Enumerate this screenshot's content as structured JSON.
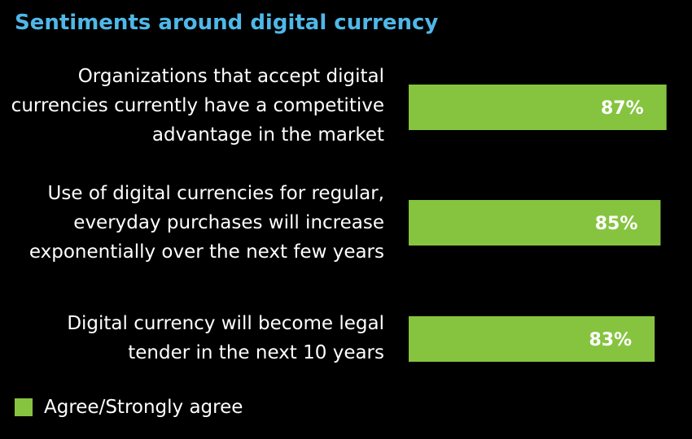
{
  "chart_data": {
    "type": "bar",
    "orientation": "horizontal",
    "title": "Sentiments around digital currency",
    "categories": [
      "Organizations that accept digital currencies currently have a competitive advantage in the market",
      "Use of digital currencies for regular, everyday purchases will increase exponentially over the next few years",
      "Digital currency will become legal tender in the next 10 years"
    ],
    "category_lines": [
      [
        "Organizations that accept digital",
        "currencies currently have a competitive",
        "advantage in the market"
      ],
      [
        "Use of digital currencies for regular,",
        "everyday purchases will increase",
        "exponentially over the next few years"
      ],
      [
        "Digital currency will become legal",
        "tender in the next 10 years"
      ]
    ],
    "series": [
      {
        "name": "Agree/Strongly agree",
        "values": [
          87,
          85,
          83
        ],
        "labels": [
          "87%",
          "85%",
          "83%"
        ]
      }
    ],
    "unit": "%",
    "legend_position": "bottom-left",
    "grid": false
  },
  "colors": {
    "background": "#000000",
    "title": "#4fb8e8",
    "bar": "#86c440",
    "bar_label": "#ffffff",
    "text": "#ffffff"
  }
}
